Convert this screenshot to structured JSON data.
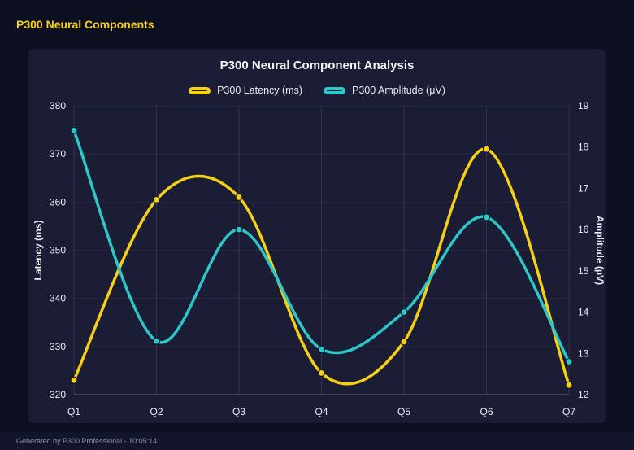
{
  "page": {
    "title": "P300 Neural Components",
    "footer": "Generated by P300 Professional - 10:05:14",
    "colors": {
      "background": "#0c0f20",
      "panel": "#1a1d34",
      "accent_yellow": "#f6cf17",
      "accent_teal": "#2ec7c9",
      "text": "#eceef5",
      "footer_text": "#8d93a8"
    }
  },
  "chart_data": {
    "type": "line",
    "title": "P300 Neural Component Analysis",
    "categories": [
      "Q1",
      "Q2",
      "Q3",
      "Q4",
      "Q5",
      "Q6",
      "Q7"
    ],
    "series": [
      {
        "name": "P300 Latency (ms)",
        "axis": "left",
        "color": "#f6cf17",
        "values": [
          323,
          360.5,
          361,
          324.5,
          331,
          371,
          322
        ]
      },
      {
        "name": "P300 Amplitude (μV)",
        "axis": "right",
        "color": "#2ec7c9",
        "values": [
          18.4,
          13.3,
          16.0,
          13.1,
          14.0,
          16.3,
          12.8
        ]
      }
    ],
    "left_axis": {
      "label": "Latency (ms)",
      "min": 320,
      "max": 380,
      "ticks": [
        320,
        330,
        340,
        350,
        360,
        370,
        380
      ]
    },
    "right_axis": {
      "label": "Amplitude (μV)",
      "min": 12,
      "max": 19,
      "ticks": [
        12,
        13,
        14,
        15,
        16,
        17,
        18,
        19
      ]
    },
    "grid": true,
    "smooth": true,
    "legend_position": "top"
  }
}
